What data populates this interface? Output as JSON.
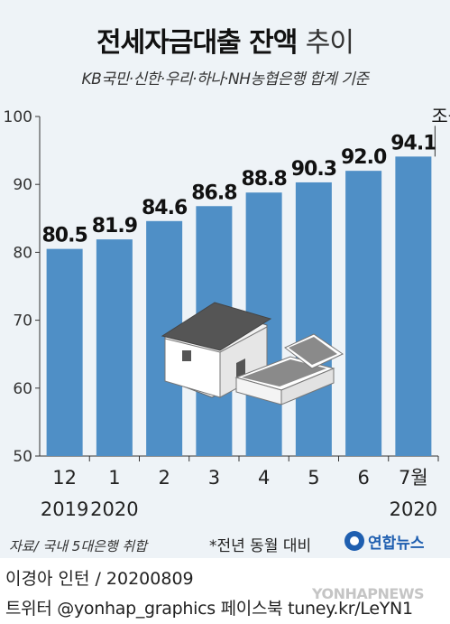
{
  "title": "전세자금대출 잔액",
  "title_light": "추이",
  "subtitle": "KB국민·신한·우리·하나·NH농협은행 합계 기준",
  "unit": "조원",
  "note": "*전년 동월 대비",
  "source": "자료/ 국내 5대은행 취합",
  "logo": "연합뉴스",
  "credit": "이경아 인턴 / 20200809",
  "twitter": "트위터 @yonhap_graphics 페이스북 tuney.kr/LeYN1",
  "watermark": "YONHAPNEWS",
  "colors": {
    "bar": "#4f8fc6",
    "background": "#eef3f7"
  },
  "chart_data": {
    "type": "bar",
    "categories": [
      "12",
      "1",
      "2",
      "3",
      "4",
      "5",
      "6",
      "7월"
    ],
    "year_labels": [
      {
        "label": "2019",
        "index": 0
      },
      {
        "label": "2020",
        "index": 1
      },
      {
        "label": "2020",
        "index": 7
      }
    ],
    "values": [
      80.5,
      81.9,
      84.6,
      86.8,
      88.8,
      90.3,
      92.0,
      94.1
    ],
    "value_labels": [
      "80.5",
      "81.9",
      "84.6",
      "86.8",
      "88.8",
      "90.3",
      "92.0",
      "94.1"
    ],
    "ylim": [
      50,
      100
    ],
    "yticks": [
      50,
      60,
      70,
      80,
      90,
      100
    ],
    "grid": false,
    "legend": "none"
  }
}
